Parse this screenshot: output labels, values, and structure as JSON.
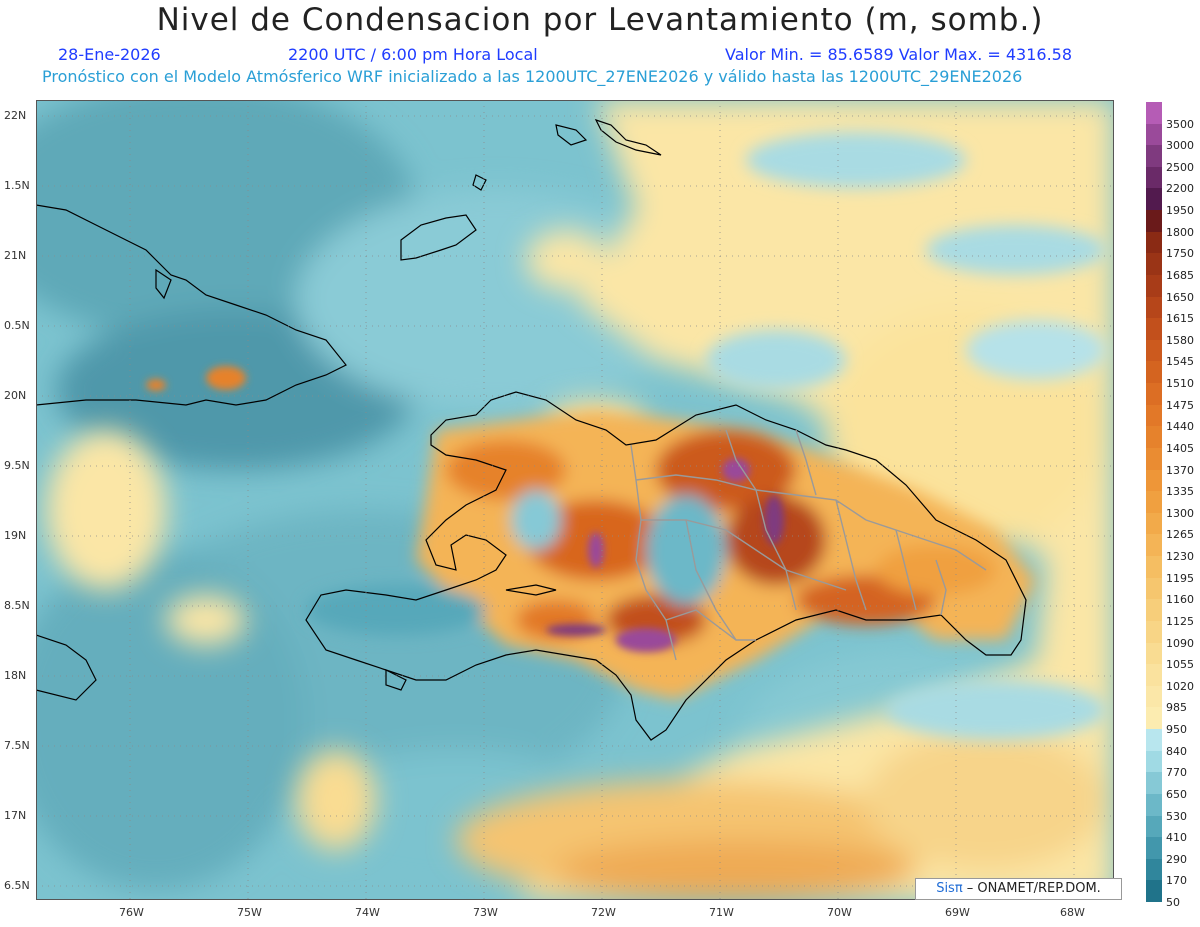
{
  "title": "Nivel de Condensacion por Levantamiento (m, somb.)",
  "header": {
    "date": "28-Ene-2026",
    "time": "2200 UTC / 6:00 pm Hora Local",
    "min_max": "Valor Min. = 85.6589   Valor Max. = 4316.58",
    "model_line": "Pronóstico con el Modelo Atmósferico WRF inicializado a las 1200UTC_27ENE2026 y válido hasta las  1200UTC_29ENE2026"
  },
  "lat_labels": [
    "22N",
    "1.5N",
    "21N",
    "0.5N",
    "20N",
    "9.5N",
    "19N",
    "8.5N",
    "18N",
    "7.5N",
    "17N",
    "6.5N"
  ],
  "lon_labels": [
    "76W",
    "75W",
    "74W",
    "73W",
    "72W",
    "71W",
    "70W",
    "69W",
    "68W"
  ],
  "colorbar": {
    "levels": [
      "3500",
      "3000",
      "2500",
      "2200",
      "1950",
      "1800",
      "1750",
      "1685",
      "1650",
      "1615",
      "1580",
      "1545",
      "1510",
      "1475",
      "1440",
      "1405",
      "1370",
      "1335",
      "1300",
      "1265",
      "1230",
      "1195",
      "1160",
      "1125",
      "1090",
      "1055",
      "1020",
      "985",
      "950",
      "840",
      "770",
      "650",
      "530",
      "410",
      "290",
      "170",
      "50"
    ],
    "colors": [
      "#b55cb5",
      "#9a4a9a",
      "#7f3a7f",
      "#6a2a68",
      "#521a4e",
      "#6a1a1a",
      "#8a2a14",
      "#9a3416",
      "#a83c18",
      "#b6461a",
      "#c2501c",
      "#cc5a1e",
      "#d46420",
      "#dc6e24",
      "#e27828",
      "#e6822c",
      "#ea8c32",
      "#ee9638",
      "#f0a040",
      "#f2aa4a",
      "#f4b456",
      "#f5be62",
      "#f6c66e",
      "#f7ce7a",
      "#f8d586",
      "#f9dc92",
      "#fae29e",
      "#fbe7a8",
      "#fcecb0",
      "#b8e6ee",
      "#a0dae4",
      "#86c9d6",
      "#6cb8c8",
      "#56a8ba",
      "#4297ac",
      "#30869c",
      "#20738a"
    ]
  },
  "credit": {
    "sis": "Sisπ",
    "rest": " – ONAMET/REP.DOM."
  }
}
